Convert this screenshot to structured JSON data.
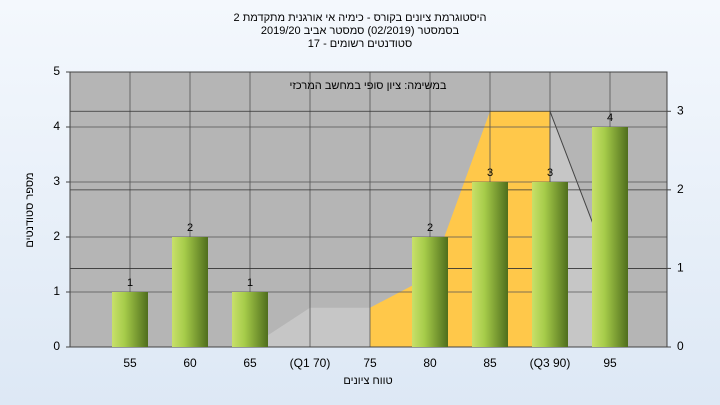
{
  "chart_data": {
    "type": "bar",
    "title": [
      "היסטוגרמת ציונים בקורס - כימיה אי אורגנית מתקדמת 2",
      "בסמסטר (02/2019)  סמסטר אביב 2019/20",
      "סטודנטים רשומים - 17"
    ],
    "annotation": "במשימה: ציון סופי במחשב המרכזי",
    "xlabel": "טווח ציונים",
    "ylabel": "מספר סטודנטים",
    "categories": [
      "55",
      "60",
      "65",
      "(Q1 70)",
      "75",
      "80",
      "85",
      "(Q3 90)",
      "95"
    ],
    "values": [
      1,
      2,
      1,
      0,
      0,
      2,
      3,
      3,
      4
    ],
    "color": "#8fbf3a",
    "ylim": [
      0,
      5
    ],
    "yticks": [
      0,
      1,
      2,
      3,
      4,
      5
    ],
    "y2lim": [
      0,
      3.5
    ],
    "y2ticks": [
      0,
      1,
      2,
      3
    ],
    "areas": [
      {
        "color": "#c6c6c6",
        "axis": "y2",
        "values": [
          null,
          null,
          0,
          0.5,
          0.5,
          null,
          null,
          null,
          null
        ]
      },
      {
        "color": "#ffc84a",
        "axis": "y2",
        "values": [
          null,
          null,
          null,
          null,
          0.5,
          0.9,
          3,
          3,
          null
        ]
      },
      {
        "color": "#c6c6c6",
        "axis": "y2",
        "values": [
          null,
          null,
          null,
          null,
          null,
          null,
          null,
          3,
          1
        ]
      }
    ],
    "grid": true
  }
}
